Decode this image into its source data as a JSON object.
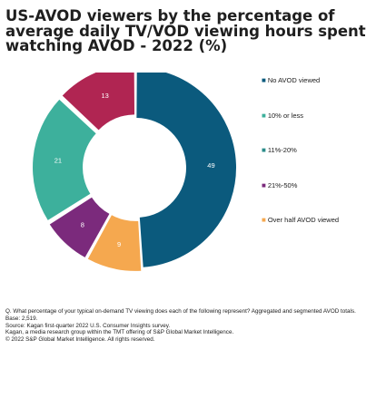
{
  "title": "US-AVOD viewers by the percentage of average daily TV/VOD viewing hours spent watching AVOD - 2022 (%)",
  "colors": {
    "no_avod": "#0b5a7d",
    "ten_or_less": "#3db09c",
    "eleven_twenty": "#2c8c8a",
    "twentyone_fifty": "#7b2a7c",
    "over_half": "#f5a84f",
    "thirteen_slice": "#b02552"
  },
  "chart_data": {
    "type": "pie",
    "donut": true,
    "title": "US-AVOD viewers by the percentage of average daily TV/VOD viewing hours spent watching AVOD - 2022 (%)",
    "slices": [
      {
        "label": "No AVOD viewed",
        "value": 49,
        "color": "#0b5a7d"
      },
      {
        "label": "Over half AVOD viewed",
        "value": 9,
        "color": "#f5a84f"
      },
      {
        "label": "21%-50%",
        "value": 8,
        "color": "#7b2a7c"
      },
      {
        "label": "11%-20%",
        "value": 21,
        "color": "#3db09c"
      },
      {
        "label": "10% or less",
        "value": 13,
        "color": "#b02552"
      }
    ],
    "legend": [
      {
        "label": "No AVOD viewed",
        "color": "#0b5a7d"
      },
      {
        "label": "10% or less",
        "color": "#3db09c"
      },
      {
        "label": "11%-20%",
        "color": "#2c8c8a"
      },
      {
        "label": "21%-50%",
        "color": "#7b2a7c"
      },
      {
        "label": "Over half AVOD viewed",
        "color": "#f5a84f"
      }
    ],
    "legend_position": "right"
  },
  "footnote": {
    "q": "Q. What percentage of your typical on-demand TV viewing does each of the following represent? Aggregated and segmented AVOD totals.",
    "base": "Base: 2,519.",
    "source": "Source: Kagan first-quarter 2022 U.S. Consumer Insights survey.",
    "kagan": "Kagan, a media research group within the TMT offering of S&P Global Market Intelligence.",
    "copyright": "© 2022 S&P Global Market Intelligence. All rights reserved."
  }
}
